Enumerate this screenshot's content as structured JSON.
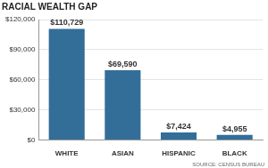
{
  "chart_data": {
    "type": "bar",
    "title": "RACIAL WEALTH GAP",
    "annotations": [
      "SOURCE: CENSUS BUREAU"
    ],
    "categories": [
      "WHITE",
      "ASIAN",
      "HISPANIC",
      "BLACK"
    ],
    "values": [
      110729,
      69590,
      7424,
      4955
    ],
    "value_labels": [
      "$110,729",
      "$69,590",
      "$7,424",
      "$4,955"
    ],
    "color": "#336e99",
    "ylim": [
      0,
      120000
    ],
    "yticks": [
      {
        "value": 0,
        "label": "$0"
      },
      {
        "value": 30000,
        "label": "$30,000"
      },
      {
        "value": 60000,
        "label": "$60,000"
      },
      {
        "value": 90000,
        "label": "$90,000"
      },
      {
        "value": 120000,
        "label": "$120,000"
      }
    ],
    "grid": true,
    "data_labels": true
  }
}
